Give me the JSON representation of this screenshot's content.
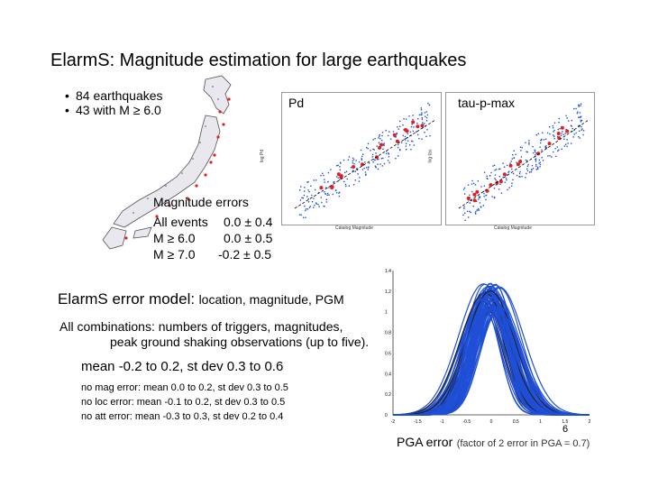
{
  "title": "ElarmS: Magnitude estimation for large earthquakes",
  "bullets": [
    "84 earthquakes",
    "43 with M ≥ 6.0"
  ],
  "magnitude_errors": {
    "heading": "Magnitude errors",
    "rows": [
      {
        "label": "All events",
        "value": "0.0 ± 0.4"
      },
      {
        "label": "M ≥ 6.0",
        "value": "0.0 ± 0.5"
      },
      {
        "label": "M ≥ 7.0",
        "value": "-0.2 ± 0.5"
      }
    ]
  },
  "plots": {
    "pd": {
      "label": "Pd",
      "xlabel": "Catalog Magnitude",
      "ylabel": "log Pd"
    },
    "tau": {
      "label": "tau-p-max",
      "xlabel": "Catalog Magnitude",
      "ylabel": "log tau"
    }
  },
  "error_model": {
    "title_big": "ElarmS error model:",
    "title_small": "location, magnitude, PGM",
    "combo_line1": "All combinations: numbers of triggers, magnitudes,",
    "combo_line2": "peak ground shaking observations (up to five).",
    "mean_line": "mean -0.2 to 0.2, st dev 0.3 to 0.6",
    "lines": [
      "no mag error: mean 0.0 to 0.2, st dev 0.3 to 0.5",
      "no loc error:  mean -0.1 to 0.2, st dev 0.3 to 0.5",
      "no att error:  mean -0.3 to 0.3, st dev 0.2 to 0.4"
    ]
  },
  "pga_plot": {
    "x_ticks": [
      "-2",
      "-1.5",
      "-1",
      "-0.5",
      "0",
      "0.5",
      "1",
      "1.5",
      "2"
    ],
    "y_ticks": [
      "1.4",
      "1.2",
      "1",
      "0.8",
      "0.6",
      "0.4",
      "0.2",
      "0"
    ],
    "label": "PGA error",
    "note": "(factor of 2 error in PGA = 0.7)"
  },
  "page_number": "6",
  "colors": {
    "points": "#1f4fd6",
    "highlight": "#e02020",
    "fit": "#000000"
  }
}
